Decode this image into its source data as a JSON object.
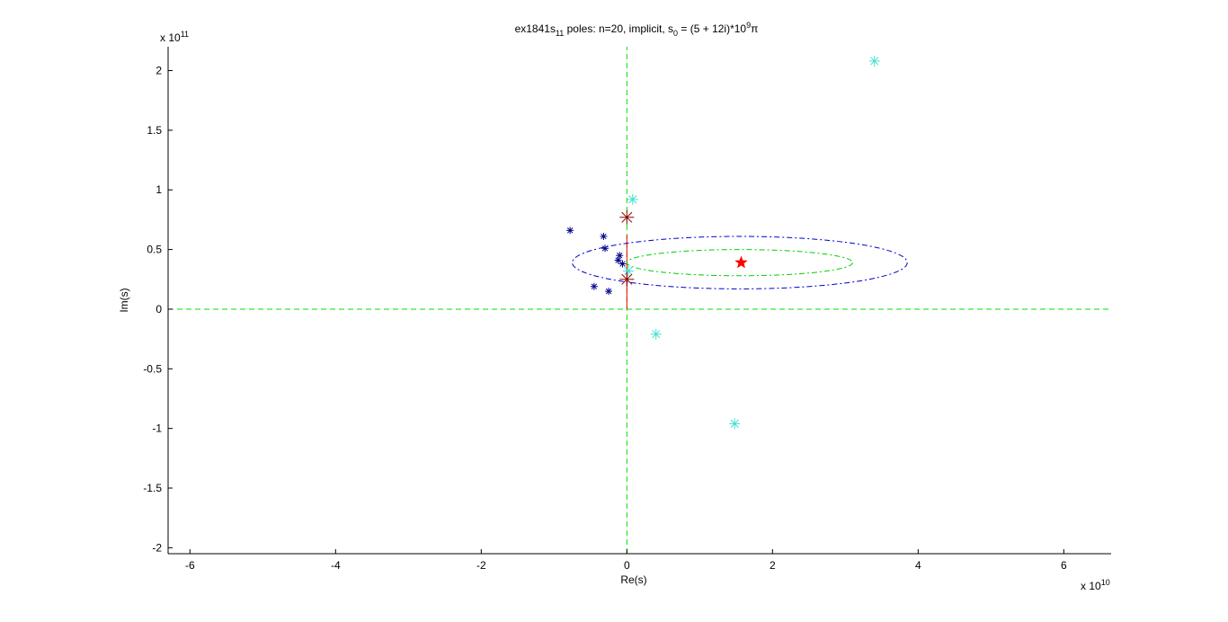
{
  "figure": {
    "background": "#ffffff"
  },
  "chart_data": {
    "type": "scatter",
    "title_parts": {
      "prefix": "ex1841s",
      "prefix_sub": "11",
      "middle": " poles: n=20, implicit, s",
      "middle_sub": "0",
      "after_sub": " = (5 + 12i)*10",
      "sup": "9",
      "suffix": "π"
    },
    "xlabel": "Re(s)",
    "ylabel": "Im(s)",
    "x_exponent_base": "x 10",
    "x_exponent_power": "10",
    "y_exponent_base": "x 10",
    "y_exponent_power": "11",
    "x_scale": 10000000000.0,
    "y_scale": 100000000000.0,
    "xlim": [
      -6.3,
      6.65
    ],
    "ylim": [
      -2.05,
      2.2
    ],
    "x_ticks": [
      -6,
      -4,
      -2,
      0,
      2,
      4,
      6
    ],
    "x_tick_labels": [
      "-6",
      "-4",
      "-2",
      "0",
      "2",
      "4",
      "6"
    ],
    "y_ticks": [
      -2,
      -1.5,
      -1,
      -0.5,
      0,
      0.5,
      1,
      1.5,
      2
    ],
    "y_tick_labels": [
      "-2",
      "-1.5",
      "-1",
      "-0.5",
      "0",
      "0.5",
      "1",
      "1.5",
      "2"
    ],
    "grid": false,
    "reference_lines": [
      {
        "name": "imag-axis-line",
        "orientation": "vertical",
        "x": 0,
        "y_range": [
          -2.05,
          2.2
        ],
        "color": "#00e000",
        "style": "dashed"
      },
      {
        "name": "real-axis-line",
        "orientation": "horizontal",
        "y": 0,
        "x_range": [
          -6.3,
          6.65
        ],
        "color": "#00e000",
        "style": "dashed"
      },
      {
        "name": "red-segment",
        "orientation": "vertical",
        "x": 0,
        "y_range": [
          0,
          0.62
        ],
        "color": "#ff0000",
        "style": "solid"
      }
    ],
    "ellipses": [
      {
        "name": "outer-ellipse",
        "cx": 1.55,
        "cy": 0.39,
        "rx": 2.3,
        "ry": 0.22,
        "color": "#0000cc",
        "style": "dashdot"
      },
      {
        "name": "inner-ellipse",
        "cx": 1.55,
        "cy": 0.39,
        "rx": 1.55,
        "ry": 0.11,
        "color": "#00d000",
        "style": "dashdot"
      }
    ],
    "series": [
      {
        "marker": "asterisk",
        "color": "#00008b",
        "size": 4,
        "points": [
          {
            "x": -0.78,
            "y": 0.66
          },
          {
            "x": -0.32,
            "y": 0.61
          },
          {
            "x": -0.3,
            "y": 0.51
          },
          {
            "x": -0.1,
            "y": 0.45
          },
          {
            "x": -0.12,
            "y": 0.41
          },
          {
            "x": -0.06,
            "y": 0.38
          },
          {
            "x": -0.45,
            "y": 0.19
          },
          {
            "x": -0.25,
            "y": 0.15
          }
        ]
      },
      {
        "marker": "asterisk",
        "color": "#40e0d0",
        "size": 6,
        "points": [
          {
            "x": 3.4,
            "y": 2.08
          },
          {
            "x": 0.08,
            "y": 0.92
          },
          {
            "x": 0.02,
            "y": 0.32
          },
          {
            "x": 0.4,
            "y": -0.21
          },
          {
            "x": 1.48,
            "y": -0.96
          }
        ]
      },
      {
        "marker": "asterisk",
        "color": "#8b0000",
        "size": 8,
        "points": [
          {
            "x": 0.0,
            "y": 0.77
          },
          {
            "x": 0.0,
            "y": 0.25
          }
        ]
      },
      {
        "marker": "pentagram",
        "color": "#ff0000",
        "size": 7,
        "points": [
          {
            "x": 1.57,
            "y": 0.39
          }
        ]
      }
    ]
  }
}
